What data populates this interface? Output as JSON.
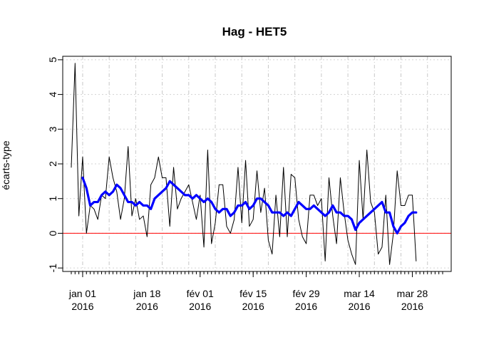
{
  "chart_data": {
    "type": "line",
    "title": "Hag - HET5",
    "xlabel": "",
    "ylabel": "écarts-type",
    "ylim": [
      -1.1,
      5.1
    ],
    "y_ticks": [
      -1,
      0,
      1,
      2,
      3,
      4,
      5
    ],
    "grid": true,
    "reference_line": {
      "y": 0,
      "color": "#ff0000"
    },
    "x_start_date": "2015-12-29",
    "x_end_date": "2016-04-05",
    "x_tick_labels": [
      {
        "date": "2016-01-01",
        "line1": "jan 01",
        "line2": "2016"
      },
      {
        "date": "2016-01-18",
        "line1": "jan 18",
        "line2": "2016"
      },
      {
        "date": "2016-02-01",
        "line1": "fév 01",
        "line2": "2016"
      },
      {
        "date": "2016-02-15",
        "line1": "fév 15",
        "line2": "2016"
      },
      {
        "date": "2016-02-29",
        "line1": "fév 29",
        "line2": "2016"
      },
      {
        "date": "2016-03-14",
        "line1": "mar 14",
        "line2": "2016"
      },
      {
        "date": "2016-03-28",
        "line1": "mar 28",
        "line2": "2016"
      }
    ],
    "series": [
      {
        "color": "#000000",
        "start_date": "2015-12-29",
        "values": [
          1.9,
          4.9,
          0.5,
          2.2,
          0.0,
          0.8,
          0.7,
          0.4,
          1.1,
          1.0,
          2.2,
          1.6,
          1.2,
          0.4,
          1.0,
          2.5,
          0.5,
          1.0,
          0.4,
          0.5,
          -0.1,
          1.4,
          1.6,
          2.2,
          1.6,
          1.6,
          0.2,
          1.9,
          0.7,
          1.0,
          1.2,
          1.4,
          0.9,
          0.4,
          1.1,
          -0.4,
          2.4,
          -0.3,
          0.3,
          1.4,
          1.4,
          0.2,
          0.0,
          0.4,
          1.9,
          0.3,
          2.1,
          0.2,
          0.4,
          1.8,
          0.6,
          1.3,
          -0.2,
          -0.6,
          1.1,
          -0.1,
          1.9,
          -0.1,
          1.7,
          1.6,
          0.4,
          -0.1,
          -0.3,
          1.1,
          1.1,
          0.8,
          1.0,
          -0.8,
          1.6,
          0.5,
          -0.3,
          1.6,
          0.6,
          -0.2,
          -0.6,
          -0.9,
          2.1,
          0.4,
          2.4,
          0.9,
          0.6,
          -0.6,
          -0.4,
          1.1,
          -0.9,
          0.0,
          1.8,
          0.8,
          0.8,
          1.1,
          1.1,
          -0.8
        ]
      },
      {
        "color": "#0000ff",
        "start_date": "2016-01-01",
        "values": [
          1.6,
          1.3,
          0.8,
          0.9,
          0.9,
          1.1,
          1.2,
          1.1,
          1.2,
          1.4,
          1.3,
          1.1,
          0.9,
          0.9,
          0.8,
          0.9,
          0.8,
          0.8,
          0.7,
          1.0,
          1.1,
          1.2,
          1.3,
          1.5,
          1.4,
          1.3,
          1.2,
          1.1,
          1.1,
          1.0,
          1.1,
          1.0,
          0.9,
          1.0,
          0.9,
          0.7,
          0.6,
          0.7,
          0.7,
          0.5,
          0.6,
          0.8,
          0.8,
          0.9,
          0.7,
          0.8,
          1.0,
          1.0,
          0.9,
          0.8,
          0.6,
          0.6,
          0.6,
          0.5,
          0.6,
          0.5,
          0.7,
          0.9,
          0.8,
          0.7,
          0.7,
          0.8,
          0.7,
          0.6,
          0.5,
          0.6,
          0.8,
          0.6,
          0.6,
          0.5,
          0.5,
          0.4,
          0.1,
          0.3,
          0.4,
          0.5,
          0.6,
          0.7,
          0.8,
          0.9,
          0.6,
          0.6,
          0.2,
          0.0,
          0.2,
          0.3,
          0.5,
          0.6,
          0.6
        ]
      }
    ]
  }
}
